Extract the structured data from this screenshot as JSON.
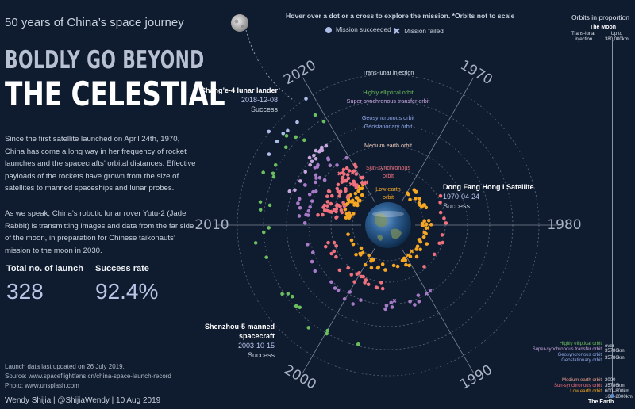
{
  "header": {
    "subtitle": "50 years of China’s space journey",
    "title_line1": "BOLDLY GO BEYOND",
    "title_line2": "THE CELESTIAL",
    "hint": "Hover over a dot or a cross to explore the mission. *Orbits not to scale"
  },
  "intro": {
    "para1": "Since the first satellite launched on April 24th, 1970, China has come a long way in her frequency of rocket launches and the spacecrafts’ orbital distances. Effective payloads of the rockets have grown from the size of satellites to manned spaceships and lunar probes.",
    "para2": "As we speak, China’s robotic lunar rover Yutu-2 (Jade Rabbit) is transmitting images and data from the far side of the moon, in preparation for Chinese taikonauts’ mission to the moon in 2030."
  },
  "stats": {
    "launch_label": "Total no. of launch",
    "launch_value": "328",
    "rate_label": "Success rate",
    "rate_value": "92.4%"
  },
  "footer": {
    "updated": "Launch data last updated on 26 July 2019.",
    "source": "Source:  www.spaceflightfans.cn/china-space-launch-record",
    "photo": "Photo: www.unsplash.com",
    "byline": "Wendy Shijia  | @ShijiaWendy | 10 Aug 2019"
  },
  "legend": {
    "succeeded": "Mission succeeded",
    "failed": "Mission failed"
  },
  "callouts": {
    "change4": {
      "name": "Chang’e-4  lunar lander",
      "date": "2018-12-08",
      "status": "Success"
    },
    "dfh": {
      "name": "Dong Fang Hong I Satellite",
      "date": "1970-04-24",
      "status": "Success"
    },
    "shenzhou": {
      "name1": "Shenzhou-5 manned",
      "name2": "spacecraft",
      "date": "2003-10-15",
      "status": "Success"
    }
  },
  "sidebar": {
    "title": "Orbits in proportion",
    "moon": "The Moon",
    "earth": "The Earth",
    "trans_lunar_a": "Trans-lunar",
    "trans_lunar_b": "injection",
    "trans_lunar_dist_a": "Up to",
    "trans_lunar_dist_b": "380,000km",
    "heo_label": "Highly elliptical orbit",
    "sst_label": "Super-synchronous transfer orbit",
    "heo_dist": "over 35786km",
    "geo_label1": "Geosyncronous orbit",
    "geo_label2": "Geostationary orbit",
    "geo_dist": "35786km",
    "meo_label": "Medium earth orbit",
    "sso_label": "Sun-synchronous orbit",
    "leo_label": "Low earth orbit",
    "meo_dist": "2000–35786km",
    "sso_dist": "600–800km",
    "leo_dist": "160–2000km"
  },
  "chart_data": {
    "type": "scatter",
    "title": "",
    "coordinate_system": "polar (angle = launch date, radius = orbit type)",
    "angle_axis": {
      "start": "1970",
      "direction": "clockwise",
      "ticks": [
        "1970",
        "1980",
        "1990",
        "2000",
        "2010",
        "2020"
      ]
    },
    "orbits": [
      {
        "name": "Low earth orbit",
        "color": "#f5a623"
      },
      {
        "name": "Sun-synchronous orbit",
        "color": "#f0717e"
      },
      {
        "name": "Medium earth orbit",
        "color": "#e8a090"
      },
      {
        "name": "Geosyncronous orbit",
        "color": "#a77bc8"
      },
      {
        "name": "Geostationary orbit",
        "color": "#a77bc8"
      },
      {
        "name": "Super-synchronous transfer orbit",
        "color": "#c8a6de"
      },
      {
        "name": "Highly elliptical orbit",
        "color": "#6bbf5e"
      },
      {
        "name": "Trans-lunar injection",
        "color": "#aebce8"
      }
    ],
    "highlights": [
      {
        "mission": "Dong Fang Hong I Satellite",
        "date": "1970-04-24",
        "orbit": "Low earth orbit",
        "status": "Success"
      },
      {
        "mission": "Shenzhou-5 manned spacecraft",
        "date": "2003-10-15",
        "orbit": "Low earth orbit",
        "status": "Success"
      },
      {
        "mission": "Chang’e-4  lunar lander",
        "date": "2018-12-08",
        "orbit": "Trans-lunar injection",
        "status": "Success"
      }
    ],
    "totals": {
      "launches": 328,
      "success_rate_pct": 92.4
    },
    "colors": {
      "background": "#0f1b2e",
      "success": "#aebce8",
      "failed": "#aebce8"
    }
  }
}
